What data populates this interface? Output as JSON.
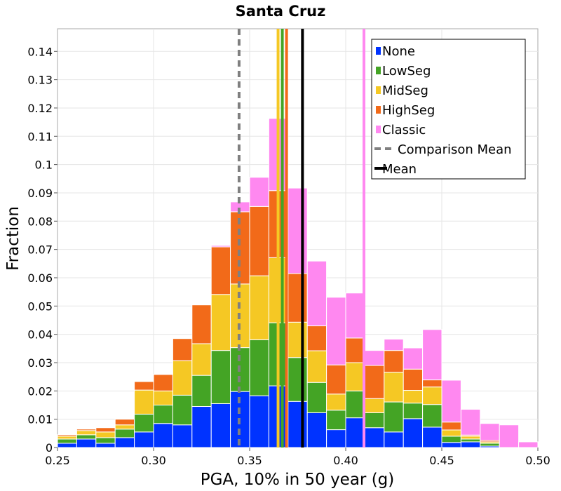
{
  "chart_data": {
    "type": "bar",
    "stacked": true,
    "title": "Santa Cruz",
    "xlabel": "PGA, 10% in 50 year (g)",
    "ylabel": "Fraction",
    "xlim": [
      0.25,
      0.5
    ],
    "ylim": [
      0,
      0.148
    ],
    "xticks": [
      "0.25",
      "0.30",
      "0.35",
      "0.40",
      "0.45",
      "0.50"
    ],
    "xtick_values": [
      0.25,
      0.3,
      0.35,
      0.4,
      0.45,
      0.5
    ],
    "yticks": [
      "0",
      "0.01",
      "0.02",
      "0.03",
      "0.04",
      "0.05",
      "0.06",
      "0.07",
      "0.08",
      "0.09",
      "0.1",
      "0.11",
      "0.12",
      "0.13",
      "0.14"
    ],
    "ytick_values": [
      0,
      0.01,
      0.02,
      0.03,
      0.04,
      0.05,
      0.06,
      0.07,
      0.08,
      0.09,
      0.1,
      0.11,
      0.12,
      0.13,
      0.14
    ],
    "grid": true,
    "legend_position": "top-right",
    "bin_width": 0.01,
    "bin_centers": [
      0.255,
      0.265,
      0.275,
      0.285,
      0.295,
      0.305,
      0.315,
      0.325,
      0.335,
      0.345,
      0.355,
      0.365,
      0.375,
      0.385,
      0.395,
      0.405,
      0.415,
      0.425,
      0.435,
      0.445,
      0.455,
      0.465,
      0.475,
      0.485,
      0.495
    ],
    "series": [
      {
        "name": "None",
        "color": "#0033ff",
        "values": [
          0.0015,
          0.003,
          0.0015,
          0.0035,
          0.0055,
          0.0085,
          0.008,
          0.0145,
          0.0155,
          0.0198,
          0.0183,
          0.0218,
          0.0163,
          0.0123,
          0.0063,
          0.0105,
          0.007,
          0.0055,
          0.0102,
          0.0072,
          0.0018,
          0.002,
          0.0005,
          0,
          0
        ]
      },
      {
        "name": "LowSeg",
        "color": "#44a425",
        "values": [
          0.0015,
          0.0015,
          0.002,
          0.003,
          0.0063,
          0.0065,
          0.0105,
          0.011,
          0.0188,
          0.0155,
          0.0198,
          0.0223,
          0.0155,
          0.0107,
          0.0069,
          0.0095,
          0.0053,
          0.0106,
          0.0055,
          0.008,
          0.0022,
          0.001,
          0.001,
          0,
          0
        ]
      },
      {
        "name": "MidSeg",
        "color": "#f5c824",
        "values": [
          0.001,
          0.0015,
          0.002,
          0.0015,
          0.0085,
          0.005,
          0.0122,
          0.0112,
          0.0198,
          0.0225,
          0.0226,
          0.023,
          0.0125,
          0.0112,
          0.0057,
          0.01,
          0.005,
          0.0105,
          0.0045,
          0.0062,
          0.0022,
          0.001,
          0.0005,
          0,
          0
        ]
      },
      {
        "name": "HighSeg",
        "color": "#f26a19",
        "values": [
          0.0005,
          0.0005,
          0.0015,
          0.002,
          0.003,
          0.0058,
          0.0078,
          0.0137,
          0.0168,
          0.0255,
          0.0245,
          0.0237,
          0.0172,
          0.0088,
          0.0103,
          0.0087,
          0.0117,
          0.0077,
          0.0075,
          0.0025,
          0.0028,
          0.0004,
          0.0005,
          0,
          0
        ]
      },
      {
        "name": "Classic",
        "color": "#ff88f0",
        "values": [
          0,
          0,
          0,
          0,
          0,
          0,
          0,
          0,
          0.0005,
          0.0035,
          0.0103,
          0.0255,
          0.0302,
          0.0229,
          0.0239,
          0.0159,
          0.0053,
          0.004,
          0.0075,
          0.0178,
          0.0148,
          0.0091,
          0.006,
          0.008,
          0.002
        ]
      }
    ],
    "vertical_lines": [
      {
        "label": "Comparison Mean",
        "x": 0.3445,
        "color": "#808080",
        "style": "dashed"
      },
      {
        "label": "Mean",
        "x": 0.3775,
        "color": "#000000",
        "style": "solid"
      }
    ],
    "series_mean_lines": [
      {
        "series": "MidSeg",
        "x": 0.3648,
        "color": "#f5c824"
      },
      {
        "series": "LowSeg",
        "x": 0.367,
        "color": "#44a425"
      },
      {
        "series": "HighSeg",
        "x": 0.3692,
        "color": "#f26a19"
      },
      {
        "series": "Classic",
        "x": 0.4095,
        "color": "#ff88f0"
      }
    ],
    "legend": [
      {
        "label": "None",
        "kind": "box",
        "color": "#0033ff"
      },
      {
        "label": "LowSeg",
        "kind": "box",
        "color": "#44a425"
      },
      {
        "label": "MidSeg",
        "kind": "box",
        "color": "#f5c824"
      },
      {
        "label": "HighSeg",
        "kind": "box",
        "color": "#f26a19"
      },
      {
        "label": "Classic",
        "kind": "box",
        "color": "#ff88f0"
      },
      {
        "label": "Comparison Mean",
        "kind": "dashed",
        "color": "#808080"
      },
      {
        "label": "Mean",
        "kind": "line",
        "color": "#000000"
      }
    ]
  }
}
